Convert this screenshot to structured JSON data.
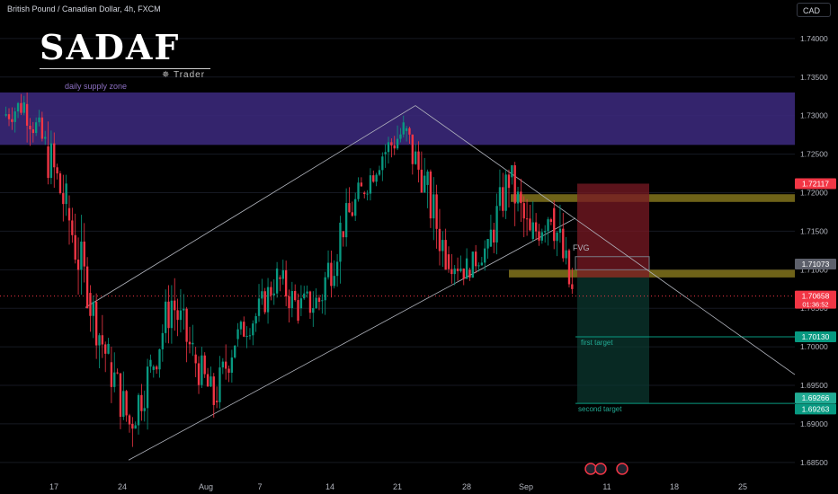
{
  "header": {
    "symbol_title": "British Pound / Canadian Dollar, 4h, FXCM",
    "currency_button": "CAD"
  },
  "logo": {
    "text": "SADAF",
    "sub": "Trader"
  },
  "chart_data": {
    "type": "candlestick",
    "symbol": "British Pound / Canadian Dollar",
    "interval": "4h",
    "source": "FXCM",
    "y_axis": {
      "ticks": [
        "1.74000",
        "1.73500",
        "1.73000",
        "1.72500",
        "1.72000",
        "1.71500",
        "1.71000",
        "1.70500",
        "1.70000",
        "1.69500",
        "1.69000",
        "1.68500"
      ],
      "range": [
        1.683,
        1.745
      ]
    },
    "x_axis": {
      "ticks": [
        "17",
        "24",
        "Aug",
        "7",
        "14",
        "21",
        "28",
        "Sep",
        "11",
        "18",
        "25"
      ]
    },
    "price_labels": [
      {
        "text": "1.72117",
        "value": 1.72117,
        "color": "#f23645"
      },
      {
        "text": "1.71073",
        "value": 1.71073,
        "color": "#5d606b"
      },
      {
        "text": "1.70658",
        "value": 1.70658,
        "color": "#f23645",
        "sub": "01:36:52"
      },
      {
        "text": "1.70130",
        "value": 1.7013,
        "color": "#089981"
      },
      {
        "text": "1.69266",
        "value": 1.69266,
        "color": "#22ab94"
      },
      {
        "text": "1.69263",
        "value": 1.69263,
        "color": "#089981"
      }
    ],
    "zones": [
      {
        "name": "daily supply zone",
        "label": "daily supply zone",
        "top": 1.733,
        "bottom": 1.7262,
        "color": "#3d2a80"
      },
      {
        "name": "upper resistance",
        "top": 1.7198,
        "bottom": 1.7188,
        "color": "#8a7a1e"
      },
      {
        "name": "lower support",
        "top": 1.71,
        "bottom": 1.709,
        "color": "#8a7a1e"
      }
    ],
    "annotations": [
      "FVG",
      "first target",
      "second target"
    ],
    "levels": {
      "first_target": 1.7013,
      "second_target": 1.69266,
      "current": 1.70658
    },
    "candles_ohlc_sample": [
      [
        1.73,
        1.734,
        1.727,
        1.7315
      ],
      [
        1.7315,
        1.733,
        1.724,
        1.726
      ],
      [
        1.726,
        1.73,
        1.716,
        1.718
      ],
      [
        1.718,
        1.72,
        1.705,
        1.707
      ],
      [
        1.707,
        1.708,
        1.696,
        1.698
      ],
      [
        1.698,
        1.7,
        1.688,
        1.69
      ],
      [
        1.69,
        1.699,
        1.687,
        1.697
      ],
      [
        1.697,
        1.708,
        1.696,
        1.706
      ],
      [
        1.706,
        1.71,
        1.698,
        1.699
      ],
      [
        1.699,
        1.7,
        1.69,
        1.693
      ],
      [
        1.693,
        1.702,
        1.692,
        1.701
      ],
      [
        1.701,
        1.706,
        1.699,
        1.704
      ],
      [
        1.704,
        1.711,
        1.703,
        1.709
      ],
      [
        1.709,
        1.712,
        1.703,
        1.705
      ],
      [
        1.705,
        1.708,
        1.699,
        1.706
      ],
      [
        1.706,
        1.717,
        1.704,
        1.715
      ],
      [
        1.715,
        1.722,
        1.713,
        1.72
      ],
      [
        1.72,
        1.726,
        1.719,
        1.725
      ],
      [
        1.725,
        1.73,
        1.722,
        1.728
      ],
      [
        1.728,
        1.732,
        1.72,
        1.721
      ],
      [
        1.721,
        1.723,
        1.71,
        1.712
      ],
      [
        1.712,
        1.716,
        1.708,
        1.71
      ],
      [
        1.71,
        1.714,
        1.708,
        1.713
      ],
      [
        1.713,
        1.723,
        1.712,
        1.722
      ],
      [
        1.722,
        1.724,
        1.712,
        1.714
      ],
      [
        1.714,
        1.72,
        1.709,
        1.718
      ],
      [
        1.718,
        1.719,
        1.706,
        1.7066
      ]
    ]
  }
}
